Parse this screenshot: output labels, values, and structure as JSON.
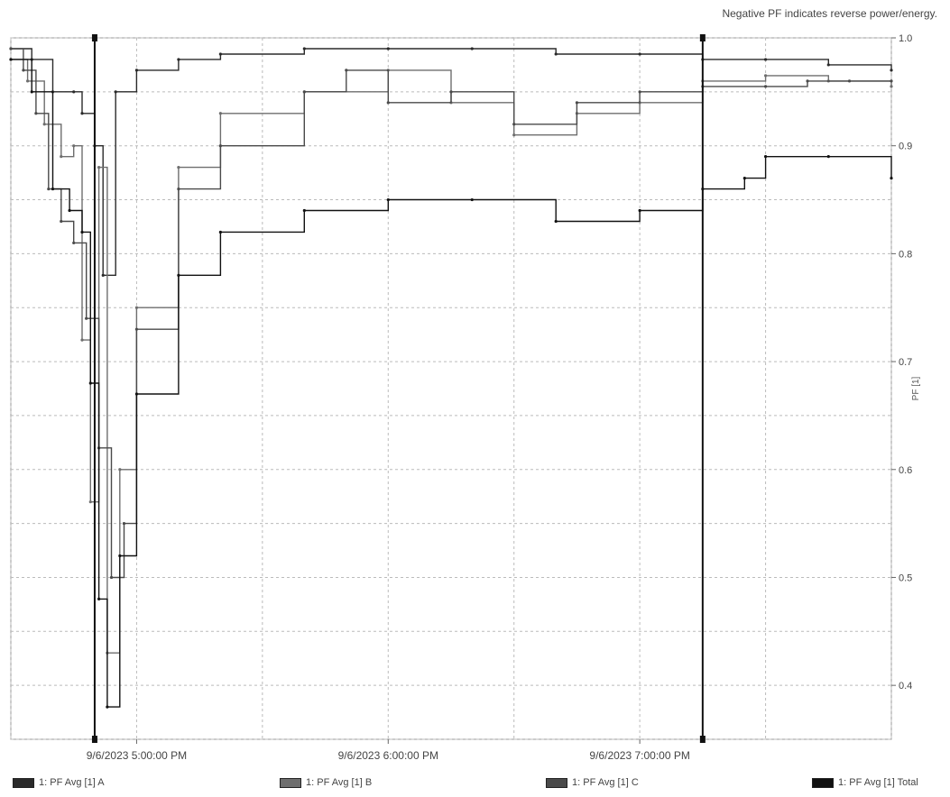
{
  "note": "Negative PF indicates reverse power/energy.",
  "chart_data": {
    "type": "line",
    "title": "",
    "ylabel": "PF [1]",
    "xlabel": "",
    "ylim": [
      0.35,
      1.0
    ],
    "xlim": [
      "9/6/2023 4:30:00 PM",
      "9/6/2023 8:00:00 PM"
    ],
    "y_ticks": [
      0.4,
      0.5,
      0.6,
      0.7,
      0.8,
      0.9,
      1.0
    ],
    "y_tick_labels": [
      "0.4",
      "0.5",
      "0.6",
      "0.7",
      "0.8",
      "0.9",
      "1.0"
    ],
    "x_tick_labels": [
      {
        "label": "9/6/2023 5:00:00 PM",
        "x": "9/6/2023 5:00:00 PM"
      },
      {
        "label": "9/6/2023 6:00:00 PM",
        "x": "9/6/2023 6:00:00 PM"
      },
      {
        "label": "9/6/2023 7:00:00 PM",
        "x": "9/6/2023 7:00:00 PM"
      }
    ],
    "grid": true,
    "legend_position": "bottom",
    "cursors": [
      "9/6/2023 4:50:00 PM",
      "9/6/2023 7:15:00 PM"
    ],
    "series": [
      {
        "name": "1: PF Avg [1] A",
        "color": "#2a2a2a",
        "x": [
          "9/6/2023 4:30:00 PM",
          "9/6/2023 4:35:00 PM",
          "9/6/2023 4:40:00 PM",
          "9/6/2023 4:45:00 PM",
          "9/6/2023 4:47:00 PM",
          "9/6/2023 4:50:00 PM",
          "9/6/2023 4:52:00 PM",
          "9/6/2023 4:55:00 PM",
          "9/6/2023 5:00:00 PM",
          "9/6/2023 5:10:00 PM",
          "9/6/2023 5:20:00 PM",
          "9/6/2023 5:40:00 PM",
          "9/6/2023 6:00:00 PM",
          "9/6/2023 6:20:00 PM",
          "9/6/2023 6:40:00 PM",
          "9/6/2023 7:00:00 PM",
          "9/6/2023 7:15:00 PM",
          "9/6/2023 7:30:00 PM",
          "9/6/2023 7:45:00 PM",
          "9/6/2023 8:00:00 PM"
        ],
        "values": [
          0.99,
          0.98,
          0.95,
          0.95,
          0.93,
          0.9,
          0.78,
          0.95,
          0.97,
          0.98,
          0.985,
          0.99,
          0.99,
          0.99,
          0.985,
          0.985,
          0.98,
          0.98,
          0.975,
          0.97
        ]
      },
      {
        "name": "1: PF Avg [1] B",
        "color": "#6e6e6e",
        "x": [
          "9/6/2023 4:30:00 PM",
          "9/6/2023 4:34:00 PM",
          "9/6/2023 4:38:00 PM",
          "9/6/2023 4:42:00 PM",
          "9/6/2023 4:45:00 PM",
          "9/6/2023 4:47:00 PM",
          "9/6/2023 4:49:00 PM",
          "9/6/2023 4:51:00 PM",
          "9/6/2023 4:53:00 PM",
          "9/6/2023 4:56:00 PM",
          "9/6/2023 5:00:00 PM",
          "9/6/2023 5:10:00 PM",
          "9/6/2023 5:20:00 PM",
          "9/6/2023 5:40:00 PM",
          "9/6/2023 6:00:00 PM",
          "9/6/2023 6:15:00 PM",
          "9/6/2023 6:30:00 PM",
          "9/6/2023 6:45:00 PM",
          "9/6/2023 7:00:00 PM",
          "9/6/2023 7:15:00 PM",
          "9/6/2023 7:30:00 PM",
          "9/6/2023 7:45:00 PM",
          "9/6/2023 8:00:00 PM"
        ],
        "values": [
          0.98,
          0.96,
          0.92,
          0.89,
          0.9,
          0.72,
          0.57,
          0.88,
          0.43,
          0.6,
          0.75,
          0.88,
          0.93,
          0.95,
          0.97,
          0.94,
          0.91,
          0.93,
          0.94,
          0.96,
          0.965,
          0.96,
          0.955
        ]
      },
      {
        "name": "1: PF Avg [1] C",
        "color": "#4a4a4a",
        "x": [
          "9/6/2023 4:30:00 PM",
          "9/6/2023 4:33:00 PM",
          "9/6/2023 4:36:00 PM",
          "9/6/2023 4:39:00 PM",
          "9/6/2023 4:42:00 PM",
          "9/6/2023 4:45:00 PM",
          "9/6/2023 4:48:00 PM",
          "9/6/2023 4:51:00 PM",
          "9/6/2023 4:54:00 PM",
          "9/6/2023 4:57:00 PM",
          "9/6/2023 5:00:00 PM",
          "9/6/2023 5:10:00 PM",
          "9/6/2023 5:20:00 PM",
          "9/6/2023 5:40:00 PM",
          "9/6/2023 5:50:00 PM",
          "9/6/2023 6:00:00 PM",
          "9/6/2023 6:15:00 PM",
          "9/6/2023 6:30:00 PM",
          "9/6/2023 6:45:00 PM",
          "9/6/2023 7:00:00 PM",
          "9/6/2023 7:15:00 PM",
          "9/6/2023 7:30:00 PM",
          "9/6/2023 7:40:00 PM",
          "9/6/2023 7:50:00 PM",
          "9/6/2023 8:00:00 PM"
        ],
        "values": [
          0.99,
          0.97,
          0.93,
          0.86,
          0.83,
          0.81,
          0.74,
          0.62,
          0.5,
          0.55,
          0.73,
          0.86,
          0.9,
          0.95,
          0.97,
          0.94,
          0.95,
          0.92,
          0.94,
          0.95,
          0.955,
          0.955,
          0.96,
          0.96,
          0.96
        ]
      },
      {
        "name": "1: PF Avg [1] Total",
        "color": "#111111",
        "x": [
          "9/6/2023 4:30:00 PM",
          "9/6/2023 4:35:00 PM",
          "9/6/2023 4:40:00 PM",
          "9/6/2023 4:44:00 PM",
          "9/6/2023 4:47:00 PM",
          "9/6/2023 4:49:00 PM",
          "9/6/2023 4:51:00 PM",
          "9/6/2023 4:53:00 PM",
          "9/6/2023 4:56:00 PM",
          "9/6/2023 5:00:00 PM",
          "9/6/2023 5:10:00 PM",
          "9/6/2023 5:20:00 PM",
          "9/6/2023 5:40:00 PM",
          "9/6/2023 6:00:00 PM",
          "9/6/2023 6:20:00 PM",
          "9/6/2023 6:40:00 PM",
          "9/6/2023 7:00:00 PM",
          "9/6/2023 7:15:00 PM",
          "9/6/2023 7:25:00 PM",
          "9/6/2023 7:30:00 PM",
          "9/6/2023 7:45:00 PM",
          "9/6/2023 8:00:00 PM"
        ],
        "values": [
          0.98,
          0.95,
          0.86,
          0.84,
          0.82,
          0.68,
          0.48,
          0.38,
          0.52,
          0.67,
          0.78,
          0.82,
          0.84,
          0.85,
          0.85,
          0.83,
          0.84,
          0.86,
          0.87,
          0.89,
          0.89,
          0.87
        ]
      }
    ]
  }
}
